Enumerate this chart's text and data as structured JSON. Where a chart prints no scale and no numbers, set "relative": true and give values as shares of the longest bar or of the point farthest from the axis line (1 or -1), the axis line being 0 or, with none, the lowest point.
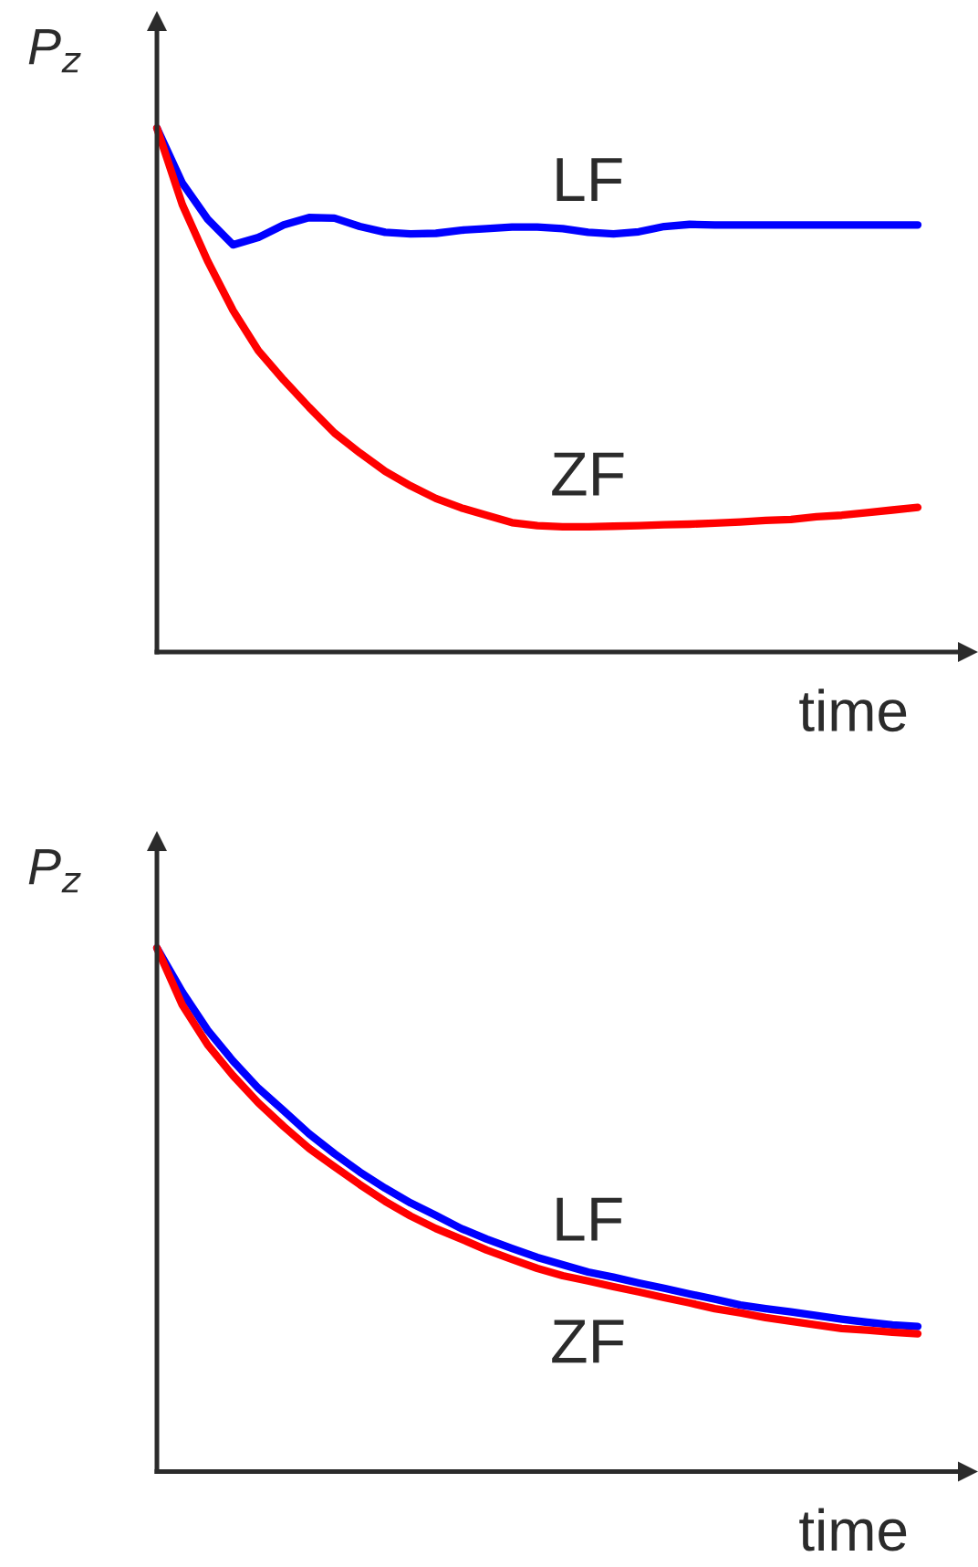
{
  "chart_data": [
    {
      "type": "line",
      "ylabel": "P$_{z}$",
      "xlabel": "time",
      "relative": true,
      "categories": [
        null,
        null,
        null,
        null,
        null,
        null,
        null,
        null,
        null,
        null,
        null,
        null,
        null,
        null,
        null,
        null,
        null,
        null,
        null,
        null,
        null,
        null,
        null,
        null,
        null,
        null,
        null,
        null,
        null,
        null,
        null
      ],
      "series": [
        {
          "name": "LF",
          "color": "#0000ff",
          "values": [
            1.0,
            0.895,
            0.826,
            0.777,
            0.791,
            0.815,
            0.829,
            0.828,
            0.812,
            0.801,
            0.798,
            0.799,
            0.805,
            0.808,
            0.811,
            0.811,
            0.808,
            0.801,
            0.798,
            0.802,
            0.812,
            0.816,
            0.815,
            0.815,
            0.815,
            0.815,
            0.815,
            0.815,
            0.815,
            0.815,
            0.815
          ]
        },
        {
          "name": "ZF",
          "color": "#ff0000",
          "values": [
            1.0,
            0.854,
            0.746,
            0.652,
            0.575,
            0.519,
            0.467,
            0.418,
            0.38,
            0.345,
            0.317,
            0.293,
            0.275,
            0.261,
            0.247,
            0.241,
            0.239,
            0.239,
            0.24,
            0.241,
            0.243,
            0.244,
            0.246,
            0.248,
            0.251,
            0.253,
            0.258,
            0.261,
            0.266,
            0.271,
            0.276
          ]
        }
      ]
    },
    {
      "type": "line",
      "ylabel": "P$_{z}$",
      "xlabel": "time",
      "relative": true,
      "categories": [
        null,
        null,
        null,
        null,
        null,
        null,
        null,
        null,
        null,
        null,
        null,
        null,
        null,
        null,
        null,
        null,
        null,
        null,
        null,
        null,
        null,
        null,
        null,
        null,
        null,
        null,
        null,
        null,
        null,
        null,
        null
      ],
      "series": [
        {
          "name": "LF",
          "color": "#0000ff",
          "values": [
            1.0,
            0.916,
            0.843,
            0.784,
            0.732,
            0.689,
            0.645,
            0.607,
            0.572,
            0.541,
            0.513,
            0.489,
            0.464,
            0.444,
            0.426,
            0.409,
            0.395,
            0.381,
            0.371,
            0.36,
            0.35,
            0.339,
            0.329,
            0.318,
            0.311,
            0.305,
            0.298,
            0.291,
            0.285,
            0.28,
            0.277
          ]
        },
        {
          "name": "ZF",
          "color": "#ff0000",
          "values": [
            1.0,
            0.891,
            0.815,
            0.756,
            0.704,
            0.659,
            0.617,
            0.582,
            0.548,
            0.516,
            0.488,
            0.464,
            0.444,
            0.423,
            0.405,
            0.388,
            0.374,
            0.364,
            0.353,
            0.343,
            0.332,
            0.322,
            0.311,
            0.303,
            0.294,
            0.287,
            0.28,
            0.273,
            0.27,
            0.266,
            0.263
          ]
        }
      ]
    }
  ]
}
